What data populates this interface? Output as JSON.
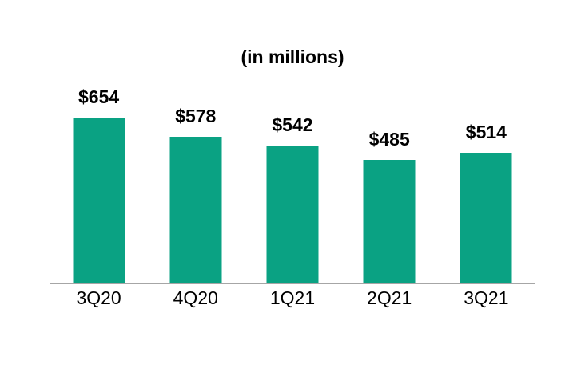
{
  "chart_data": {
    "type": "bar",
    "title": "(in millions)",
    "categories": [
      "3Q20",
      "4Q20",
      "1Q21",
      "2Q21",
      "3Q21"
    ],
    "values": [
      654,
      578,
      542,
      485,
      514
    ],
    "data_labels": [
      "$654",
      "$578",
      "$542",
      "$485",
      "$514"
    ],
    "xlabel": "",
    "ylabel": "",
    "ylim": [
      0,
      700
    ],
    "grid": false,
    "legend": false,
    "layout_hints": {
      "data_labels_position": "above-bars",
      "baseline_axis_only": true
    },
    "colors": {
      "bar": "#0AA283",
      "axis_line": "#A6A6A6",
      "text": "#000000",
      "background": "#FFFFFF"
    }
  }
}
